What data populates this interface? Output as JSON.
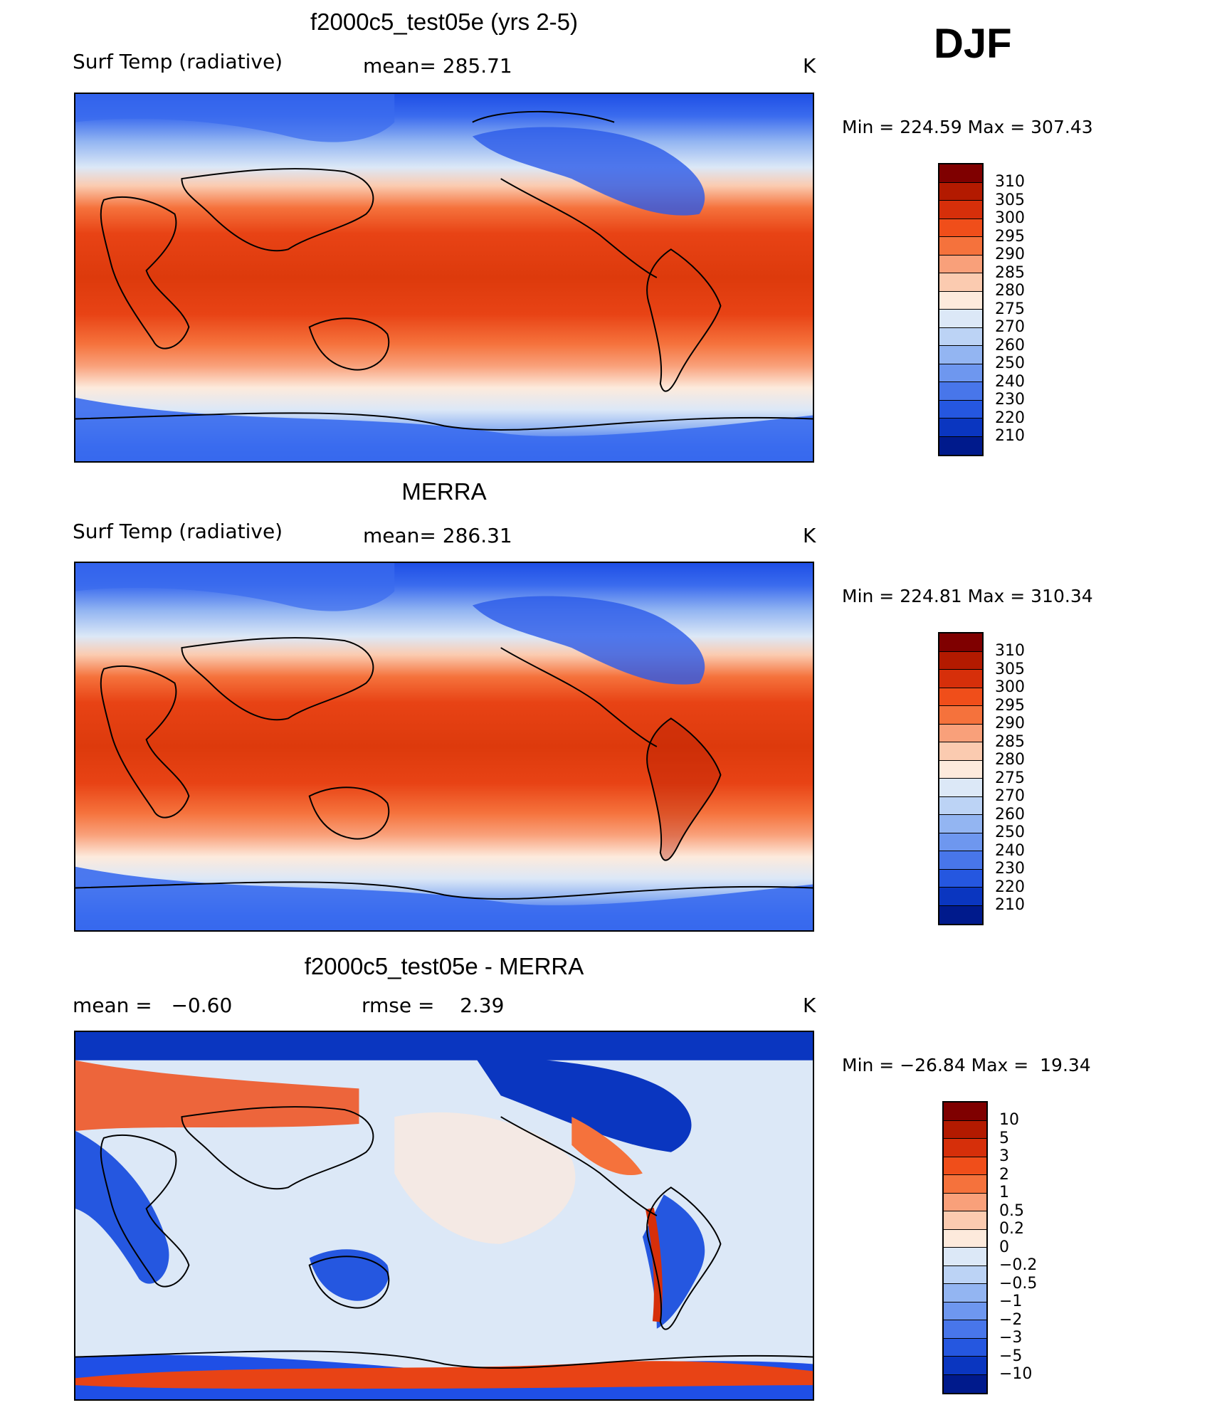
{
  "season": "DJF",
  "panels": [
    {
      "title": "f2000c5_test05e (yrs 2-5)",
      "left_text": "Surf Temp (radiative)",
      "center_text": "mean= 285.71",
      "units": "K",
      "minmax": "Min = 224.59 Max = 307.43"
    },
    {
      "title": "MERRA",
      "left_text": "Surf Temp (radiative)",
      "center_text": "mean= 286.31",
      "units": "K",
      "minmax": "Min = 224.81 Max = 310.34"
    },
    {
      "title": "f2000c5_test05e - MERRA",
      "left_text": "mean =   −0.60",
      "center_text": "rmse =    2.39",
      "units": "K",
      "minmax": "Min = −26.84 Max =  19.34"
    }
  ],
  "colorbar_abs": {
    "labels": [
      "310",
      "305",
      "300",
      "295",
      "290",
      "285",
      "280",
      "275",
      "270",
      "260",
      "250",
      "240",
      "230",
      "220",
      "210"
    ],
    "colors": [
      "#7f0000",
      "#b31a00",
      "#d62f0a",
      "#f04e1a",
      "#f5723c",
      "#f9a07a",
      "#fbcbb0",
      "#fdeadc",
      "#dce8f7",
      "#bcd3f5",
      "#93b5f2",
      "#6e97ef",
      "#4876ea",
      "#2557e0",
      "#0a36c0",
      "#001a8c"
    ]
  },
  "colorbar_diff": {
    "labels": [
      "10",
      "5",
      "3",
      "2",
      "1",
      "0.5",
      "0.2",
      "0",
      "−0.2",
      "−0.5",
      "−1",
      "−2",
      "−3",
      "−5",
      "−10"
    ],
    "colors": [
      "#7f0000",
      "#b31a00",
      "#d62f0a",
      "#f04e1a",
      "#f5723c",
      "#f9a07a",
      "#fbcbb0",
      "#fdeadc",
      "#dce8f7",
      "#bcd3f5",
      "#93b5f2",
      "#6e97ef",
      "#4876ea",
      "#2557e0",
      "#0a36c0",
      "#001a8c"
    ]
  }
}
